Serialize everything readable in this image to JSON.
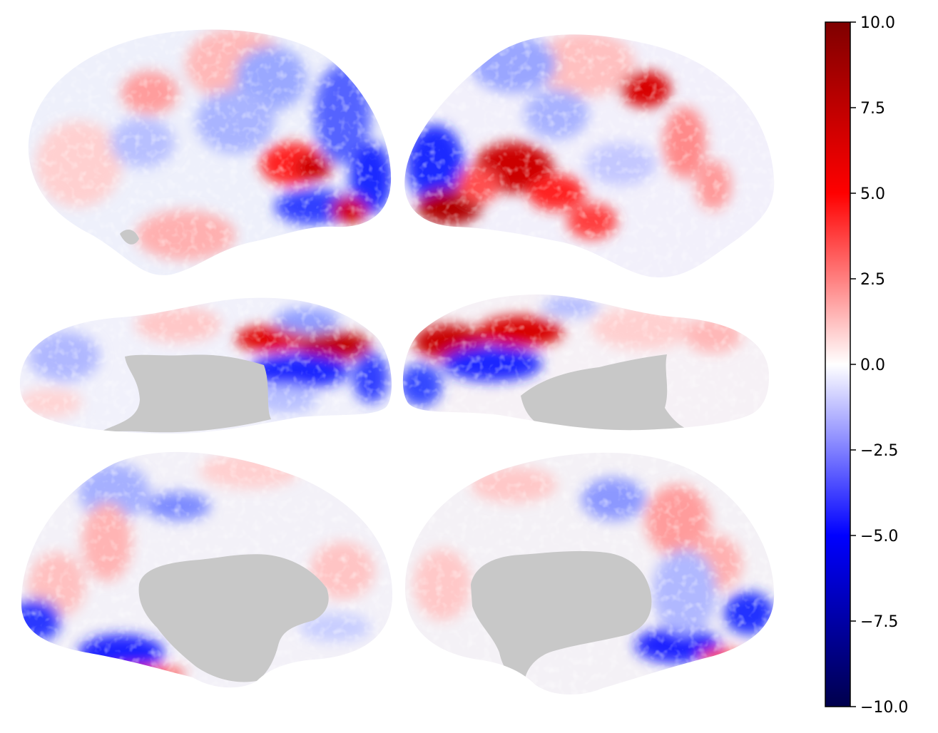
{
  "figure": {
    "views": [
      {
        "id": "left-lateral-view"
      },
      {
        "id": "right-lateral-view"
      },
      {
        "id": "left-ventral-view"
      },
      {
        "id": "right-ventral-view"
      },
      {
        "id": "left-medial-view"
      },
      {
        "id": "right-medial-view"
      }
    ],
    "medial_wall_color": "#c8c8c8",
    "colormap": "seismic",
    "colorbar": {
      "vmin": -10.0,
      "vmax": 10.0,
      "stops": [
        "#00004c",
        "#0000ff",
        "#ffffff",
        "#ff0000",
        "#7f0000"
      ],
      "ticks": [
        {
          "value": 10.0,
          "label": "10.0"
        },
        {
          "value": 7.5,
          "label": "7.5"
        },
        {
          "value": 5.0,
          "label": "5.0"
        },
        {
          "value": 2.5,
          "label": "2.5"
        },
        {
          "value": 0.0,
          "label": "0.0"
        },
        {
          "value": -2.5,
          "label": "−2.5"
        },
        {
          "value": -5.0,
          "label": "−5.0"
        },
        {
          "value": -7.5,
          "label": "−7.5"
        },
        {
          "value": -10.0,
          "label": "−10.0"
        }
      ]
    }
  }
}
